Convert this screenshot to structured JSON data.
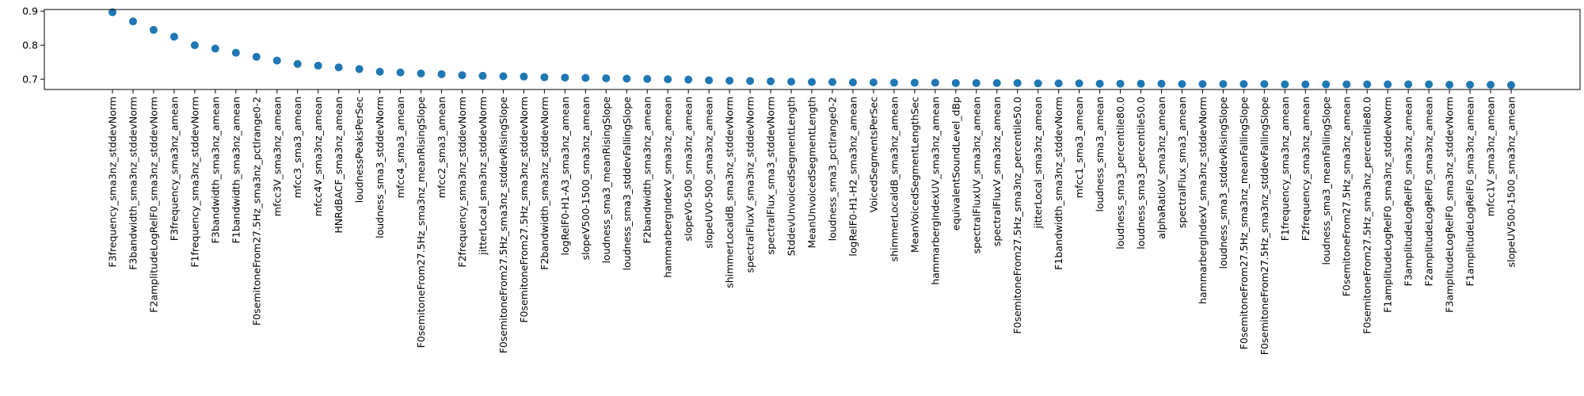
{
  "chart_data": {
    "type": "scatter",
    "title": "",
    "xlabel": "",
    "ylabel": "",
    "ylim": [
      0.67,
      0.905
    ],
    "y_ticks": [
      0.7,
      0.8,
      0.9
    ],
    "y_tick_labels": [
      "0.7",
      "0.8",
      "0.9"
    ],
    "grid": false,
    "marker_color": "#1f77b4",
    "categories": [
      "F3frequency_sma3nz_stddevNorm",
      "F3bandwidth_sma3nz_stddevNorm",
      "F2amplitudeLogRelF0_sma3nz_stddevNorm",
      "F3frequency_sma3nz_amean",
      "F1frequency_sma3nz_stddevNorm",
      "F3bandwidth_sma3nz_amean",
      "F1bandwidth_sma3nz_amean",
      "F0semitoneFrom27.5Hz_sma3nz_pctlrange0-2",
      "mfcc3V_sma3nz_amean",
      "mfcc3_sma3_amean",
      "mfcc4V_sma3nz_amean",
      "HNRdBACF_sma3nz_amean",
      "loudnessPeaksPerSec",
      "loudness_sma3_stddevNorm",
      "mfcc4_sma3_amean",
      "F0semitoneFrom27.5Hz_sma3nz_meanRisingSlope",
      "mfcc2_sma3_amean",
      "F2frequency_sma3nz_stddevNorm",
      "jitterLocal_sma3nz_stddevNorm",
      "F0semitoneFrom27.5Hz_sma3nz_stddevRisingSlope",
      "F0semitoneFrom27.5Hz_sma3nz_stddevNorm",
      "F2bandwidth_sma3nz_stddevNorm",
      "logRelF0-H1-A3_sma3nz_amean",
      "slopeV500-1500_sma3nz_amean",
      "loudness_sma3_meanRisingSlope",
      "loudness_sma3_stddevFallingSlope",
      "F2bandwidth_sma3nz_amean",
      "hammarbergIndexV_sma3nz_amean",
      "slopeV0-500_sma3nz_amean",
      "slopeUV0-500_sma3nz_amean",
      "shimmerLocaldB_sma3nz_stddevNorm",
      "spectralFluxV_sma3nz_stddevNorm",
      "spectralFlux_sma3_stddevNorm",
      "StddevUnvoicedSegmentLength",
      "MeanUnvoicedSegmentLength",
      "loudness_sma3_pctlrange0-2",
      "logRelF0-H1-H2_sma3nz_amean",
      "VoicedSegmentsPerSec",
      "shimmerLocaldB_sma3nz_amean",
      "MeanVoicedSegmentLengthSec",
      "hammarbergIndexUV_sma3nz_amean",
      "equivalentSoundLevel_dBp",
      "spectralFluxUV_sma3nz_amean",
      "spectralFluxV_sma3nz_amean",
      "F0semitoneFrom27.5Hz_sma3nz_percentile50.0",
      "jitterLocal_sma3nz_amean",
      "F1bandwidth_sma3nz_stddevNorm",
      "mfcc1_sma3_amean",
      "loudness_sma3_amean",
      "loudness_sma3_percentile80.0",
      "loudness_sma3_percentile50.0",
      "alphaRatioV_sma3nz_amean",
      "spectralFlux_sma3_amean",
      "hammarbergIndexV_sma3nz_stddevNorm",
      "loudness_sma3_stddevRisingSlope",
      "F0semitoneFrom27.5Hz_sma3nz_meanFallingSlope",
      "F0semitoneFrom27.5Hz_sma3nz_stddevFallingSlope",
      "F1frequency_sma3nz_amean",
      "F2frequency_sma3nz_amean",
      "loudness_sma3_meanFallingSlope",
      "F0semitoneFrom27.5Hz_sma3nz_amean",
      "F0semitoneFrom27.5Hz_sma3nz_percentile80.0",
      "F1amplitudeLogRelF0_sma3nz_stddevNorm",
      "F3amplitudeLogRelF0_sma3nz_amean",
      "F2amplitudeLogRelF0_sma3nz_amean",
      "F3amplitudeLogRelF0_sma3nz_stddevNorm",
      "F1amplitudeLogRelF0_sma3nz_amean",
      "mfcc1V_sma3nz_amean",
      "slopeUV500-1500_sma3nz_amean"
    ],
    "values": [
      0.897,
      0.87,
      0.845,
      0.825,
      0.8,
      0.79,
      0.778,
      0.766,
      0.755,
      0.745,
      0.74,
      0.735,
      0.73,
      0.722,
      0.72,
      0.717,
      0.715,
      0.712,
      0.71,
      0.709,
      0.708,
      0.706,
      0.705,
      0.704,
      0.703,
      0.702,
      0.701,
      0.7,
      0.699,
      0.697,
      0.696,
      0.695,
      0.694,
      0.693,
      0.692,
      0.692,
      0.691,
      0.691,
      0.69,
      0.69,
      0.69,
      0.689,
      0.689,
      0.689,
      0.689,
      0.688,
      0.688,
      0.688,
      0.687,
      0.687,
      0.687,
      0.687,
      0.686,
      0.686,
      0.686,
      0.686,
      0.686,
      0.685,
      0.685,
      0.685,
      0.685,
      0.685,
      0.685,
      0.685,
      0.685,
      0.684,
      0.684,
      0.684,
      0.683
    ]
  }
}
